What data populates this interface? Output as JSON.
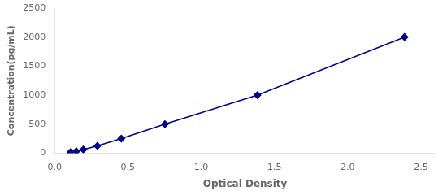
{
  "chart_data": {
    "type": "line",
    "x": [
      0.108,
      0.148,
      0.196,
      0.292,
      0.455,
      0.753,
      1.384,
      2.388
    ],
    "values": [
      15.625,
      31.25,
      62.5,
      125,
      250,
      500,
      1000,
      2000
    ],
    "color": "#00008B",
    "marker": "diamond",
    "line_style": "solid",
    "xlabel": "Optical Density",
    "ylabel": "Concentration(pg/mL)",
    "xlim": [
      0.0,
      2.6
    ],
    "ylim": [
      0,
      2500
    ],
    "xticks": [
      {
        "value": 0,
        "label": "0.0"
      },
      0.5,
      {
        "value": 1,
        "label": "1.0"
      },
      1.5,
      {
        "value": 2,
        "label": "2.0"
      },
      2.5
    ],
    "yticks": [
      0,
      500,
      1000,
      1500,
      2000,
      2500
    ],
    "grid": false
  }
}
